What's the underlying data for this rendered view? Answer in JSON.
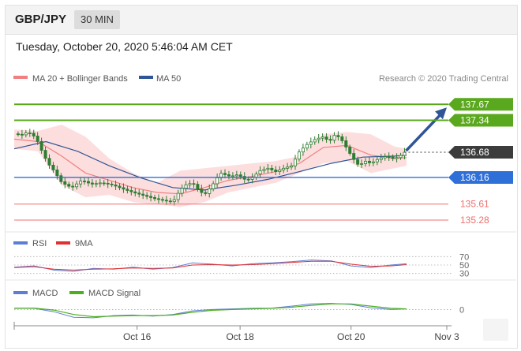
{
  "header": {
    "pair": "GBP/JPY",
    "timeframe": "30 MIN",
    "datetime": "Tuesday, October 20, 2020 5:46:04 AM CET"
  },
  "legend": {
    "ma20": "MA 20 + Bollinger Bands",
    "ma50": "MA 50",
    "credit": "Research © 2020 Trading Central",
    "rsi": "RSI",
    "rsi_ma": "9MA",
    "macd": "MACD",
    "macd_signal": "MACD Signal"
  },
  "colors": {
    "candle": "#2e7d32",
    "ma20": "#f08080",
    "bollinger": "#fdd8d8",
    "ma50": "#2f5597",
    "support": "#2e6fd8",
    "resistance": "#5aa81e",
    "minor": "#ef6f6f",
    "current": "#3c3c3c",
    "rsi": "#5b7fd6",
    "rsi_ma": "#e03030",
    "macd": "#5b7fd6",
    "macd_signal": "#4caf1e"
  },
  "chart_data": {
    "type": "line",
    "title": "GBP/JPY",
    "ylim": [
      135.1,
      138.0
    ],
    "x_ticks": [
      {
        "label": "Oct 16",
        "t": 0.31
      },
      {
        "label": "Oct 18",
        "t": 0.57
      },
      {
        "label": "Oct 20",
        "t": 0.85
      },
      {
        "label": "Nov 3",
        "t": 1.0
      }
    ],
    "levels": [
      {
        "label": "137.67",
        "value": 137.67,
        "kind": "resistance"
      },
      {
        "label": "137.34",
        "value": 137.34,
        "kind": "resistance"
      },
      {
        "label": "136.68",
        "value": 136.68,
        "kind": "current"
      },
      {
        "label": "136.16",
        "value": 136.16,
        "kind": "support"
      },
      {
        "label": "135.61",
        "value": 135.61,
        "kind": "minor"
      },
      {
        "label": "135.28",
        "value": 135.28,
        "kind": "minor"
      }
    ],
    "price_path": [
      [
        0.0,
        137.06
      ],
      [
        0.02,
        137.04
      ],
      [
        0.035,
        137.1
      ],
      [
        0.055,
        136.98
      ],
      [
        0.07,
        136.7
      ],
      [
        0.085,
        136.45
      ],
      [
        0.1,
        136.3
      ],
      [
        0.12,
        136.05
      ],
      [
        0.145,
        135.95
      ],
      [
        0.17,
        136.1
      ],
      [
        0.195,
        136.02
      ],
      [
        0.22,
        136.05
      ],
      [
        0.25,
        136.0
      ],
      [
        0.275,
        135.92
      ],
      [
        0.3,
        135.85
      ],
      [
        0.33,
        135.78
      ],
      [
        0.355,
        135.72
      ],
      [
        0.38,
        135.68
      ],
      [
        0.4,
        135.65
      ],
      [
        0.415,
        135.85
      ],
      [
        0.43,
        136.0
      ],
      [
        0.45,
        136.05
      ],
      [
        0.465,
        135.9
      ],
      [
        0.48,
        135.8
      ],
      [
        0.5,
        136.0
      ],
      [
        0.52,
        136.25
      ],
      [
        0.545,
        136.18
      ],
      [
        0.565,
        136.22
      ],
      [
        0.585,
        136.1
      ],
      [
        0.6,
        136.15
      ],
      [
        0.62,
        136.3
      ],
      [
        0.64,
        136.35
      ],
      [
        0.66,
        136.28
      ],
      [
        0.68,
        136.35
      ],
      [
        0.7,
        136.4
      ],
      [
        0.72,
        136.7
      ],
      [
        0.74,
        136.85
      ],
      [
        0.76,
        136.95
      ],
      [
        0.78,
        137.0
      ],
      [
        0.795,
        136.9
      ],
      [
        0.81,
        137.05
      ],
      [
        0.825,
        136.95
      ],
      [
        0.84,
        136.75
      ],
      [
        0.855,
        136.55
      ],
      [
        0.87,
        136.4
      ],
      [
        0.885,
        136.5
      ],
      [
        0.9,
        136.45
      ],
      [
        0.92,
        136.55
      ],
      [
        0.94,
        136.6
      ],
      [
        0.955,
        136.55
      ],
      [
        0.97,
        136.58
      ],
      [
        0.985,
        136.68
      ]
    ],
    "ma20": [
      [
        0.0,
        136.95
      ],
      [
        0.06,
        136.9
      ],
      [
        0.12,
        136.6
      ],
      [
        0.18,
        136.25
      ],
      [
        0.24,
        136.1
      ],
      [
        0.3,
        135.95
      ],
      [
        0.36,
        135.85
      ],
      [
        0.42,
        135.82
      ],
      [
        0.48,
        135.95
      ],
      [
        0.54,
        136.1
      ],
      [
        0.6,
        136.18
      ],
      [
        0.66,
        136.28
      ],
      [
        0.72,
        136.45
      ],
      [
        0.78,
        136.78
      ],
      [
        0.84,
        136.82
      ],
      [
        0.9,
        136.62
      ],
      [
        0.96,
        136.55
      ],
      [
        0.99,
        136.57
      ]
    ],
    "ma50": [
      [
        0.0,
        136.75
      ],
      [
        0.08,
        136.9
      ],
      [
        0.16,
        136.7
      ],
      [
        0.24,
        136.4
      ],
      [
        0.32,
        136.15
      ],
      [
        0.4,
        135.95
      ],
      [
        0.48,
        135.9
      ],
      [
        0.56,
        136.0
      ],
      [
        0.64,
        136.12
      ],
      [
        0.72,
        136.28
      ],
      [
        0.8,
        136.45
      ],
      [
        0.88,
        136.58
      ],
      [
        0.96,
        136.6
      ],
      [
        0.99,
        136.62
      ]
    ],
    "boll_upper": [
      [
        0.0,
        137.15
      ],
      [
        0.06,
        137.12
      ],
      [
        0.12,
        137.25
      ],
      [
        0.18,
        137.0
      ],
      [
        0.24,
        136.55
      ],
      [
        0.3,
        136.25
      ],
      [
        0.36,
        136.05
      ],
      [
        0.42,
        136.3
      ],
      [
        0.48,
        136.35
      ],
      [
        0.54,
        136.4
      ],
      [
        0.6,
        136.45
      ],
      [
        0.66,
        136.5
      ],
      [
        0.72,
        136.6
      ],
      [
        0.78,
        137.05
      ],
      [
        0.84,
        137.1
      ],
      [
        0.9,
        137.05
      ],
      [
        0.96,
        136.8
      ],
      [
        0.99,
        136.75
      ]
    ],
    "boll_lower": [
      [
        0.0,
        136.75
      ],
      [
        0.06,
        136.7
      ],
      [
        0.12,
        136.0
      ],
      [
        0.18,
        135.75
      ],
      [
        0.24,
        135.8
      ],
      [
        0.3,
        135.65
      ],
      [
        0.36,
        135.6
      ],
      [
        0.42,
        135.55
      ],
      [
        0.48,
        135.65
      ],
      [
        0.54,
        135.85
      ],
      [
        0.6,
        135.95
      ],
      [
        0.66,
        136.05
      ],
      [
        0.72,
        136.25
      ],
      [
        0.78,
        136.45
      ],
      [
        0.84,
        136.5
      ],
      [
        0.9,
        136.25
      ],
      [
        0.96,
        136.35
      ],
      [
        0.99,
        136.4
      ]
    ],
    "forecast_arrow": {
      "from": [
        0.985,
        136.68
      ],
      "to": [
        1.08,
        137.67
      ]
    },
    "rsi": {
      "levels": [
        70,
        50,
        30
      ],
      "ylim": [
        20,
        80
      ],
      "series": [
        [
          0.0,
          45
        ],
        [
          0.05,
          48
        ],
        [
          0.1,
          38
        ],
        [
          0.15,
          35
        ],
        [
          0.2,
          42
        ],
        [
          0.25,
          40
        ],
        [
          0.3,
          45
        ],
        [
          0.35,
          40
        ],
        [
          0.4,
          44
        ],
        [
          0.45,
          55
        ],
        [
          0.5,
          52
        ],
        [
          0.55,
          48
        ],
        [
          0.6,
          53
        ],
        [
          0.65,
          55
        ],
        [
          0.7,
          58
        ],
        [
          0.75,
          62
        ],
        [
          0.8,
          60
        ],
        [
          0.85,
          48
        ],
        [
          0.9,
          44
        ],
        [
          0.95,
          50
        ],
        [
          0.99,
          53
        ]
      ],
      "ma": [
        [
          0.0,
          44
        ],
        [
          0.05,
          46
        ],
        [
          0.1,
          40
        ],
        [
          0.15,
          38
        ],
        [
          0.2,
          40
        ],
        [
          0.25,
          41
        ],
        [
          0.3,
          43
        ],
        [
          0.35,
          42
        ],
        [
          0.4,
          43
        ],
        [
          0.45,
          50
        ],
        [
          0.5,
          51
        ],
        [
          0.55,
          50
        ],
        [
          0.6,
          51
        ],
        [
          0.65,
          53
        ],
        [
          0.7,
          56
        ],
        [
          0.75,
          59
        ],
        [
          0.8,
          59
        ],
        [
          0.85,
          52
        ],
        [
          0.9,
          47
        ],
        [
          0.95,
          48
        ],
        [
          0.99,
          51
        ]
      ]
    },
    "macd": {
      "zero_label": "0",
      "ylim": [
        -0.5,
        0.35
      ],
      "series": [
        [
          0.0,
          0.05
        ],
        [
          0.05,
          0.04
        ],
        [
          0.1,
          -0.08
        ],
        [
          0.15,
          -0.28
        ],
        [
          0.2,
          -0.3
        ],
        [
          0.25,
          -0.22
        ],
        [
          0.3,
          -0.2
        ],
        [
          0.35,
          -0.24
        ],
        [
          0.4,
          -0.18
        ],
        [
          0.45,
          -0.05
        ],
        [
          0.5,
          0.0
        ],
        [
          0.55,
          0.02
        ],
        [
          0.6,
          0.04
        ],
        [
          0.65,
          0.05
        ],
        [
          0.7,
          0.12
        ],
        [
          0.75,
          0.2
        ],
        [
          0.8,
          0.22
        ],
        [
          0.85,
          0.18
        ],
        [
          0.9,
          0.06
        ],
        [
          0.95,
          0.0
        ],
        [
          0.99,
          0.02
        ]
      ],
      "signal": [
        [
          0.0,
          0.04
        ],
        [
          0.05,
          0.05
        ],
        [
          0.1,
          -0.02
        ],
        [
          0.15,
          -0.18
        ],
        [
          0.2,
          -0.26
        ],
        [
          0.25,
          -0.24
        ],
        [
          0.3,
          -0.22
        ],
        [
          0.35,
          -0.22
        ],
        [
          0.4,
          -0.2
        ],
        [
          0.45,
          -0.1
        ],
        [
          0.5,
          -0.03
        ],
        [
          0.55,
          0.0
        ],
        [
          0.6,
          0.02
        ],
        [
          0.65,
          0.04
        ],
        [
          0.7,
          0.08
        ],
        [
          0.75,
          0.15
        ],
        [
          0.8,
          0.2
        ],
        [
          0.85,
          0.2
        ],
        [
          0.9,
          0.12
        ],
        [
          0.95,
          0.04
        ],
        [
          0.99,
          0.02
        ]
      ]
    }
  }
}
